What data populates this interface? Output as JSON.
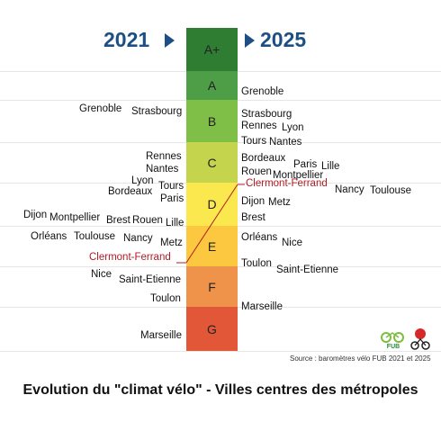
{
  "years": {
    "left": "2021",
    "right": "2025"
  },
  "grades": [
    {
      "label": "A+",
      "color": "#2f7d32"
    },
    {
      "label": "A",
      "color": "#4e9d47"
    },
    {
      "label": "B",
      "color": "#7fbf48"
    },
    {
      "label": "C",
      "color": "#c4d44c"
    },
    {
      "label": "D",
      "color": "#fbe84f"
    },
    {
      "label": "E",
      "color": "#fbc83f"
    },
    {
      "label": "F",
      "color": "#f0934a"
    },
    {
      "label": "G",
      "color": "#e25738"
    }
  ],
  "cities_2021": [
    "Grenoble",
    "Strasbourg",
    "Rennes",
    "Nantes",
    "Lyon",
    "Tours",
    "Bordeaux",
    "Paris",
    "Dijon",
    "Montpellier",
    "Brest",
    "Rouen",
    "Lille",
    "Orléans",
    "Toulouse",
    "Nancy",
    "Metz",
    "Clermont-Ferrand",
    "Nice",
    "Saint-Etienne",
    "Toulon",
    "Marseille"
  ],
  "cities_2025": [
    "Grenoble",
    "Strasbourg",
    "Rennes",
    "Lyon",
    "Tours",
    "Nantes",
    "Bordeaux",
    "Paris",
    "Lille",
    "Rouen",
    "Montpellier",
    "Clermont-Ferrand",
    "Nancy",
    "Toulouse",
    "Dijon",
    "Metz",
    "Brest",
    "Orléans",
    "Nice",
    "Toulon",
    "Saint-Etienne",
    "Marseille"
  ],
  "highlight_city": "Clermont-Ferrand",
  "highlight_color": "#b01c24",
  "source": "Source : baromètres vélo FUB 2021 et 2025",
  "title": "Evolution du \"climat vélo\" - Villes centres des métropoles",
  "logos": {
    "fub": "FUB"
  }
}
